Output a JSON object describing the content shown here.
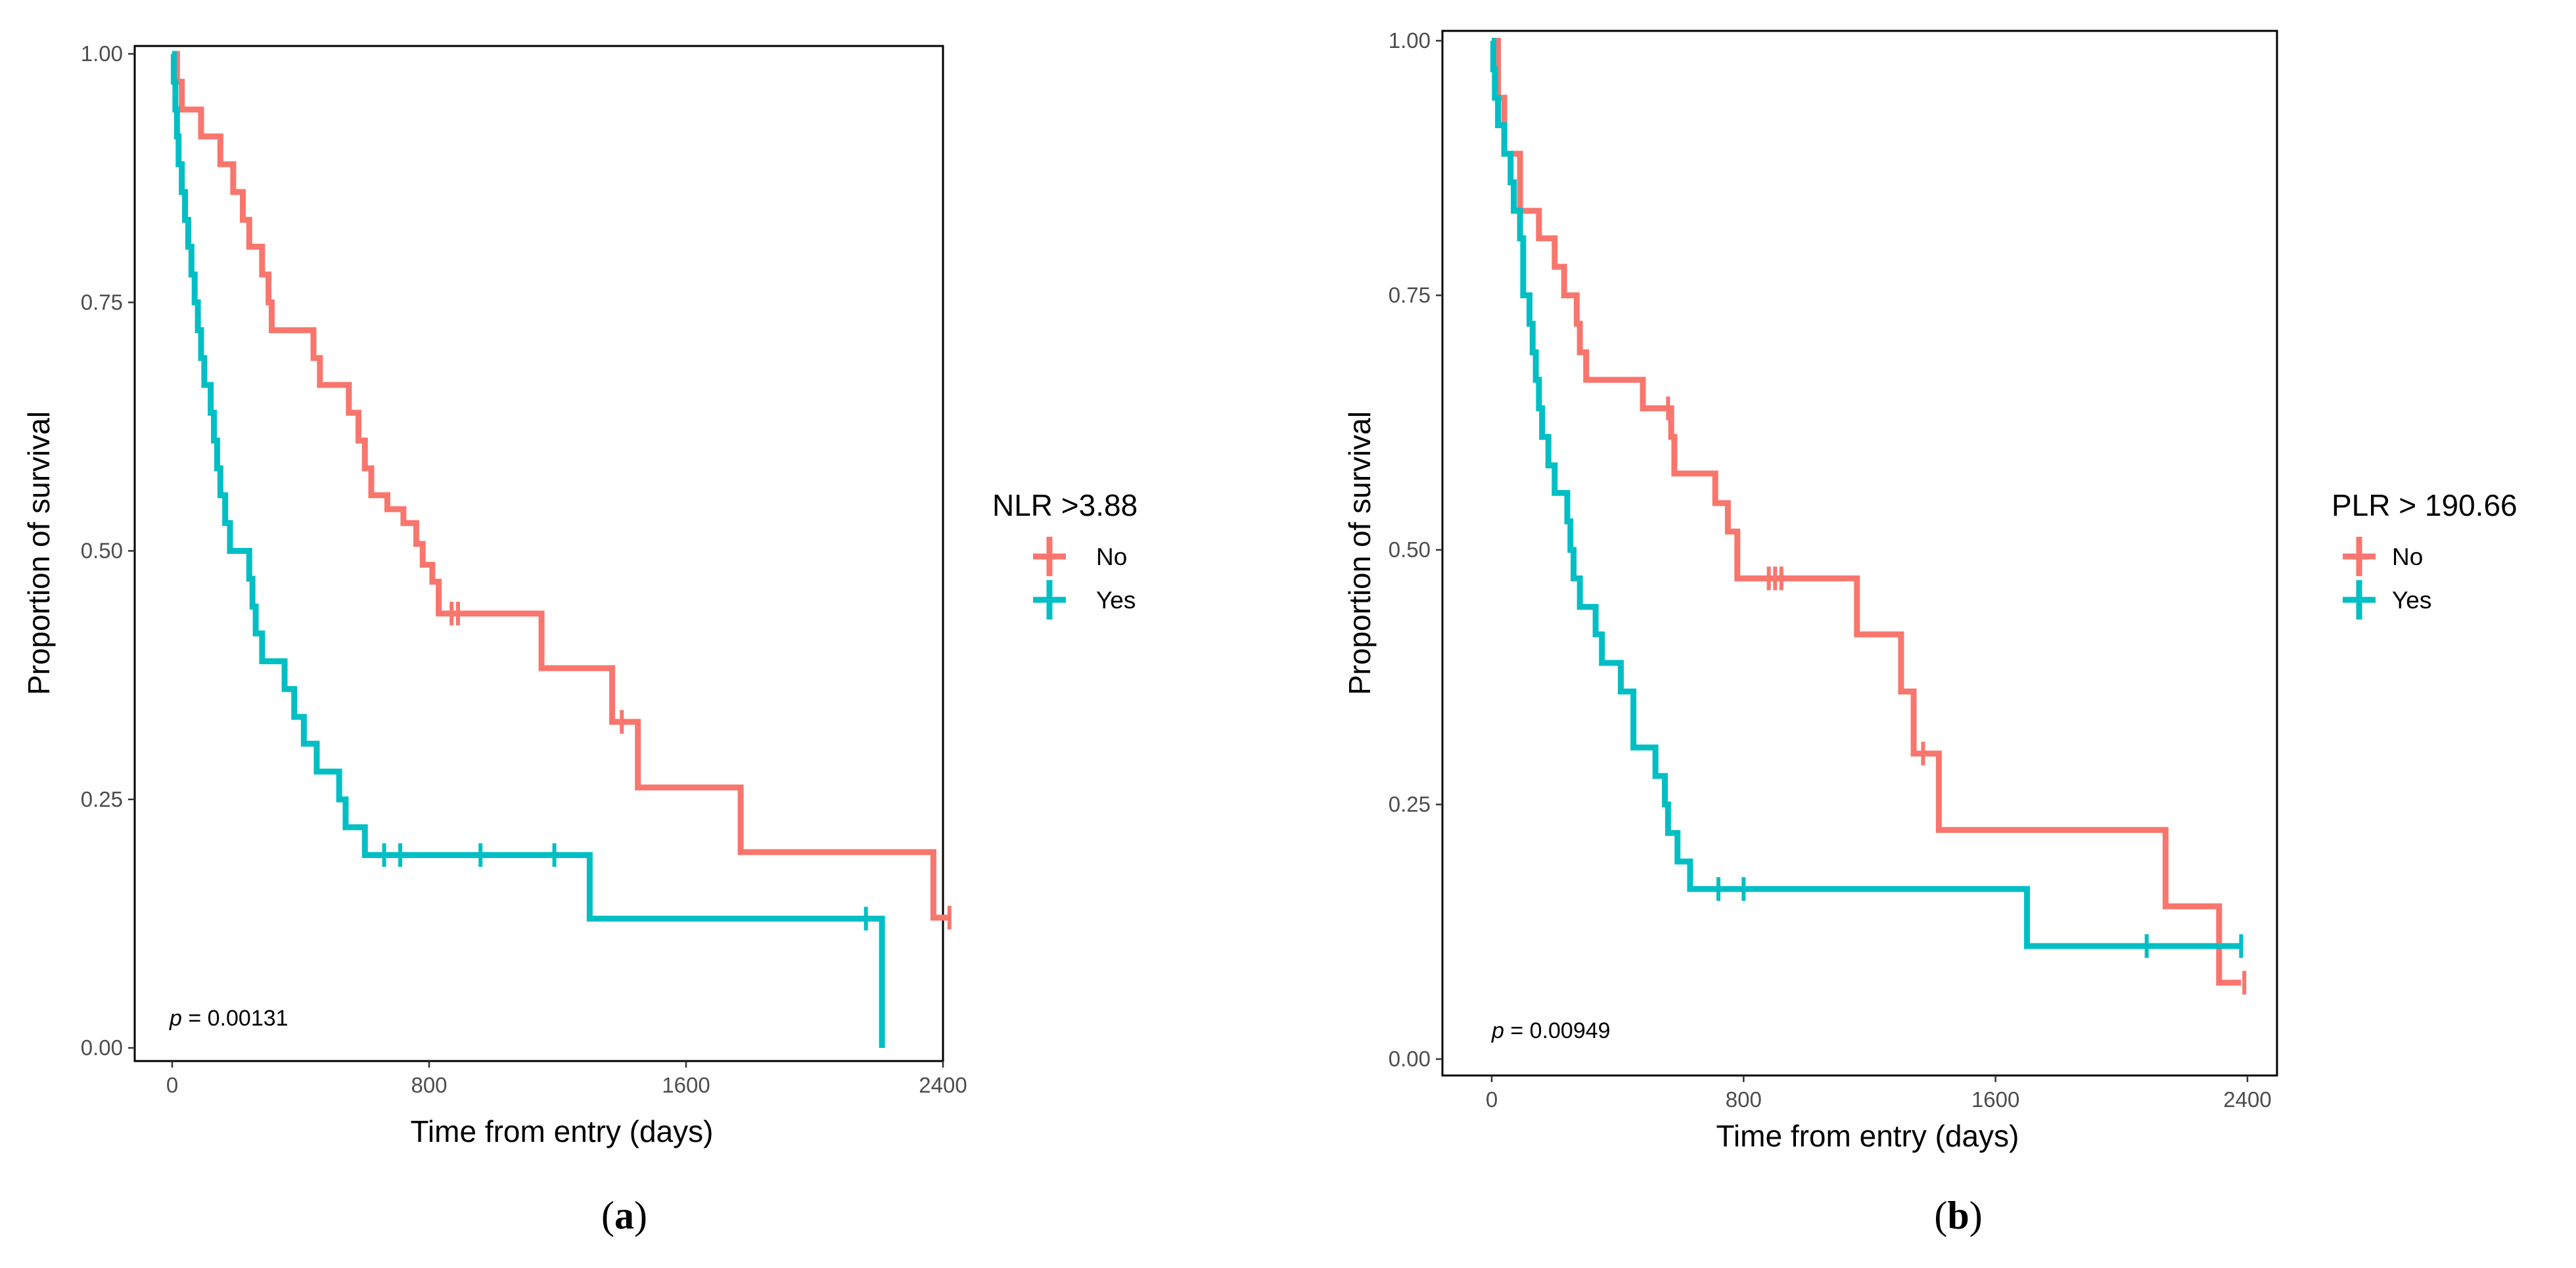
{
  "chart_data": [
    {
      "type": "line",
      "subtype": "kaplan-meier",
      "panel_label": "a",
      "xlabel": "Time from entry (days)",
      "ylabel": "Proportion of survival",
      "xlim": [
        0,
        2400
      ],
      "ylim": [
        0,
        1
      ],
      "xticks": [
        0,
        800,
        1600,
        2400
      ],
      "yticks": [
        0.0,
        0.25,
        0.5,
        0.75,
        1.0
      ],
      "ytick_labels": [
        "0.00",
        "0.25",
        "0.50",
        "0.75",
        "1.00"
      ],
      "xtick_labels": [
        "0",
        "800",
        "1600",
        "2400"
      ],
      "grid": false,
      "legend": {
        "title": "NLR >3.88",
        "placement": "right"
      },
      "annotation": {
        "p_symbol": "p",
        "p_text": " = 0.00131"
      },
      "series": [
        {
          "name": "No",
          "color": "#F8766D",
          "steps": [
            [
              0,
              1.0
            ],
            [
              15,
              0.972
            ],
            [
              30,
              0.944
            ],
            [
              90,
              0.917
            ],
            [
              150,
              0.889
            ],
            [
              190,
              0.861
            ],
            [
              220,
              0.833
            ],
            [
              240,
              0.806
            ],
            [
              280,
              0.778
            ],
            [
              300,
              0.75
            ],
            [
              310,
              0.722
            ],
            [
              440,
              0.694
            ],
            [
              460,
              0.667
            ],
            [
              550,
              0.639
            ],
            [
              580,
              0.611
            ],
            [
              600,
              0.583
            ],
            [
              620,
              0.556
            ],
            [
              670,
              0.542
            ],
            [
              720,
              0.528
            ],
            [
              760,
              0.507
            ],
            [
              780,
              0.486
            ],
            [
              810,
              0.469
            ],
            [
              830,
              0.437
            ],
            [
              1150,
              0.382
            ],
            [
              1370,
              0.328
            ],
            [
              1450,
              0.262
            ],
            [
              1770,
              0.197
            ],
            [
              2370,
              0.131
            ],
            [
              2420,
              0.131
            ]
          ],
          "censor": [
            [
              870,
              0.437
            ],
            [
              890,
              0.437
            ],
            [
              1400,
              0.328
            ],
            [
              2420,
              0.131
            ]
          ]
        },
        {
          "name": "Yes",
          "color": "#00BFC4",
          "steps": [
            [
              0,
              1.0
            ],
            [
              5,
              0.972
            ],
            [
              10,
              0.944
            ],
            [
              15,
              0.917
            ],
            [
              20,
              0.889
            ],
            [
              30,
              0.861
            ],
            [
              40,
              0.833
            ],
            [
              50,
              0.806
            ],
            [
              60,
              0.778
            ],
            [
              70,
              0.75
            ],
            [
              80,
              0.722
            ],
            [
              90,
              0.694
            ],
            [
              100,
              0.667
            ],
            [
              120,
              0.639
            ],
            [
              130,
              0.611
            ],
            [
              140,
              0.583
            ],
            [
              150,
              0.556
            ],
            [
              165,
              0.528
            ],
            [
              180,
              0.5
            ],
            [
              240,
              0.472
            ],
            [
              250,
              0.444
            ],
            [
              260,
              0.417
            ],
            [
              280,
              0.389
            ],
            [
              350,
              0.361
            ],
            [
              380,
              0.333
            ],
            [
              410,
              0.306
            ],
            [
              450,
              0.278
            ],
            [
              520,
              0.25
            ],
            [
              540,
              0.222
            ],
            [
              600,
              0.194
            ],
            [
              1300,
              0.13
            ],
            [
              2210,
              0.13
            ],
            [
              2210,
              0.0
            ]
          ],
          "censor": [
            [
              660,
              0.194
            ],
            [
              710,
              0.194
            ],
            [
              960,
              0.194
            ],
            [
              1190,
              0.194
            ],
            [
              2160,
              0.13
            ]
          ]
        }
      ]
    },
    {
      "type": "line",
      "subtype": "kaplan-meier",
      "panel_label": "b",
      "xlabel": "Time from entry (days)",
      "ylabel": "Proportion of survival",
      "xlim": [
        0,
        2400
      ],
      "ylim": [
        0,
        1
      ],
      "xticks": [
        0,
        800,
        1600,
        2400
      ],
      "yticks": [
        0.0,
        0.25,
        0.5,
        0.75,
        1.0
      ],
      "ytick_labels": [
        "0.00",
        "0.25",
        "0.50",
        "0.75",
        "1.00"
      ],
      "xtick_labels": [
        "0",
        "800",
        "1600",
        "2400"
      ],
      "grid": false,
      "legend": {
        "title": "PLR > 190.66",
        "placement": "right"
      },
      "annotation": {
        "p_symbol": "p",
        "p_text": " = 0.00949"
      },
      "series": [
        {
          "name": "No",
          "color": "#F8766D",
          "steps": [
            [
              0,
              1.0
            ],
            [
              20,
              0.944
            ],
            [
              40,
              0.889
            ],
            [
              90,
              0.833
            ],
            [
              150,
              0.806
            ],
            [
              200,
              0.778
            ],
            [
              230,
              0.75
            ],
            [
              270,
              0.722
            ],
            [
              280,
              0.694
            ],
            [
              300,
              0.667
            ],
            [
              480,
              0.639
            ],
            [
              570,
              0.611
            ],
            [
              580,
              0.575
            ],
            [
              710,
              0.546
            ],
            [
              750,
              0.518
            ],
            [
              780,
              0.472
            ],
            [
              1160,
              0.417
            ],
            [
              1300,
              0.361
            ],
            [
              1340,
              0.3
            ],
            [
              1420,
              0.225
            ],
            [
              2140,
              0.15
            ],
            [
              2310,
              0.075
            ],
            [
              2380,
              0.075
            ]
          ],
          "censor": [
            [
              560,
              0.639
            ],
            [
              880,
              0.472
            ],
            [
              900,
              0.472
            ],
            [
              920,
              0.472
            ],
            [
              1370,
              0.3
            ],
            [
              2390,
              0.075
            ]
          ]
        },
        {
          "name": "Yes",
          "color": "#00BFC4",
          "steps": [
            [
              0,
              1.0
            ],
            [
              5,
              0.972
            ],
            [
              10,
              0.944
            ],
            [
              20,
              0.917
            ],
            [
              40,
              0.889
            ],
            [
              60,
              0.861
            ],
            [
              70,
              0.833
            ],
            [
              90,
              0.806
            ],
            [
              100,
              0.75
            ],
            [
              120,
              0.722
            ],
            [
              130,
              0.694
            ],
            [
              140,
              0.667
            ],
            [
              150,
              0.639
            ],
            [
              160,
              0.611
            ],
            [
              180,
              0.583
            ],
            [
              200,
              0.556
            ],
            [
              240,
              0.528
            ],
            [
              250,
              0.5
            ],
            [
              260,
              0.472
            ],
            [
              280,
              0.444
            ],
            [
              330,
              0.417
            ],
            [
              350,
              0.389
            ],
            [
              410,
              0.361
            ],
            [
              450,
              0.306
            ],
            [
              520,
              0.278
            ],
            [
              550,
              0.25
            ],
            [
              560,
              0.222
            ],
            [
              590,
              0.194
            ],
            [
              630,
              0.167
            ],
            [
              1700,
              0.111
            ],
            [
              2380,
              0.111
            ]
          ],
          "censor": [
            [
              720,
              0.167
            ],
            [
              800,
              0.167
            ],
            [
              2080,
              0.111
            ],
            [
              2380,
              0.111
            ]
          ]
        }
      ]
    }
  ]
}
